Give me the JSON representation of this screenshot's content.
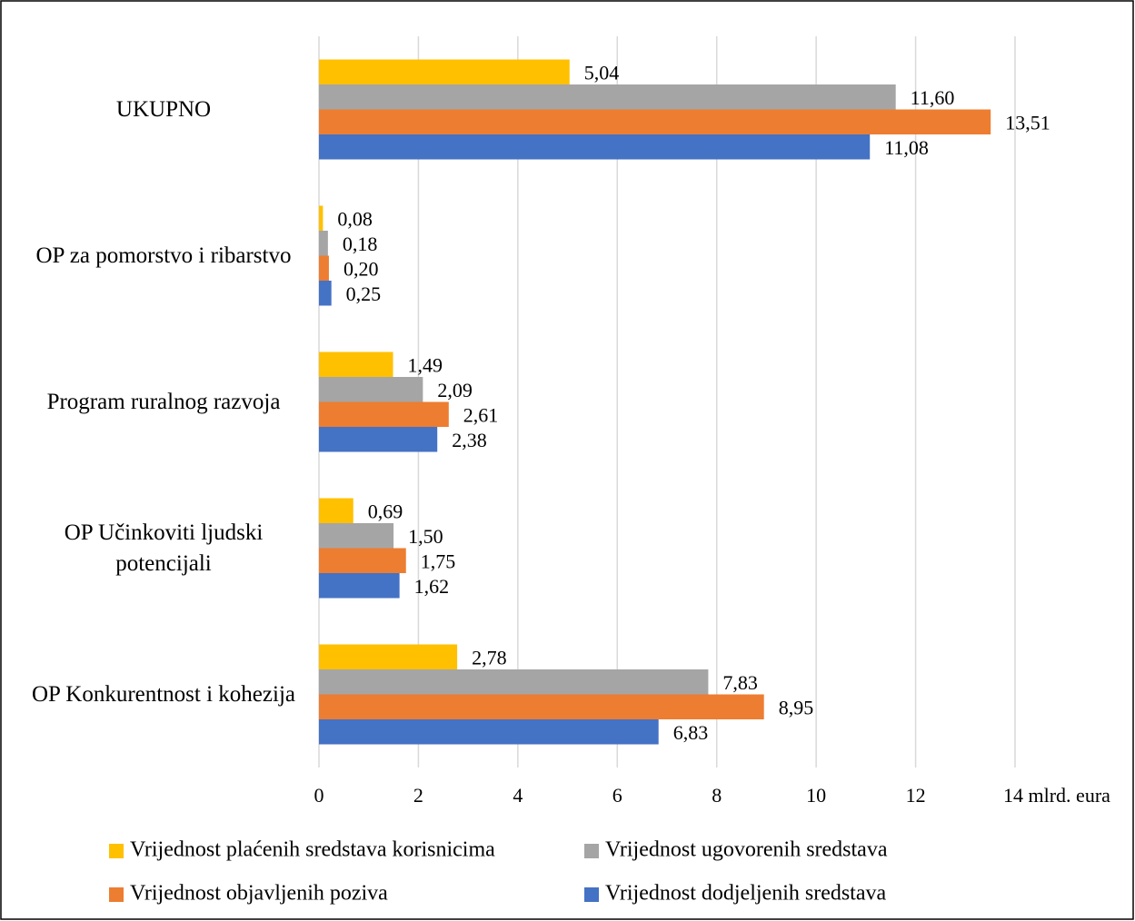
{
  "chart_data": {
    "type": "bar",
    "orientation": "horizontal",
    "categories": [
      "UKUPNO",
      "OP za pomorstvo i ribarstvo",
      "Program ruralnog razvoja",
      "OP Učinkoviti ljudski potencijali",
      "OP Konkurentnost i kohezija"
    ],
    "series": [
      {
        "name": "Vrijednost plaćenih sredstava korisnicima",
        "color": "#ffc000",
        "values": [
          5.04,
          0.08,
          1.49,
          0.69,
          2.78
        ],
        "value_labels": [
          "5,04",
          "0,08",
          "1,49",
          "0,69",
          "2,78"
        ]
      },
      {
        "name": "Vrijednost ugovorenih sredstava",
        "color": "#a5a5a5",
        "values": [
          11.6,
          0.18,
          2.09,
          1.5,
          7.83
        ],
        "value_labels": [
          "11,60",
          "0,18",
          "2,09",
          "1,50",
          "7,83"
        ]
      },
      {
        "name": "Vrijednost objavljenih poziva",
        "color": "#ed7d31",
        "values": [
          13.51,
          0.2,
          2.61,
          1.75,
          8.95
        ],
        "value_labels": [
          "13,51",
          "0,20",
          "2,61",
          "1,75",
          "8,95"
        ]
      },
      {
        "name": "Vrijednost dodjeljenih sredstava",
        "color": "#4472c4",
        "values": [
          11.08,
          0.25,
          2.38,
          1.62,
          6.83
        ],
        "value_labels": [
          "11,08",
          "0,25",
          "2,38",
          "1,62",
          "6,83"
        ]
      }
    ],
    "xlim": [
      0,
      14
    ],
    "xticks": [
      0,
      2,
      4,
      6,
      8,
      10,
      12,
      {
        "value": 14,
        "label": "14 mlrd. eura"
      }
    ],
    "grid": true,
    "legend": "bottom"
  }
}
